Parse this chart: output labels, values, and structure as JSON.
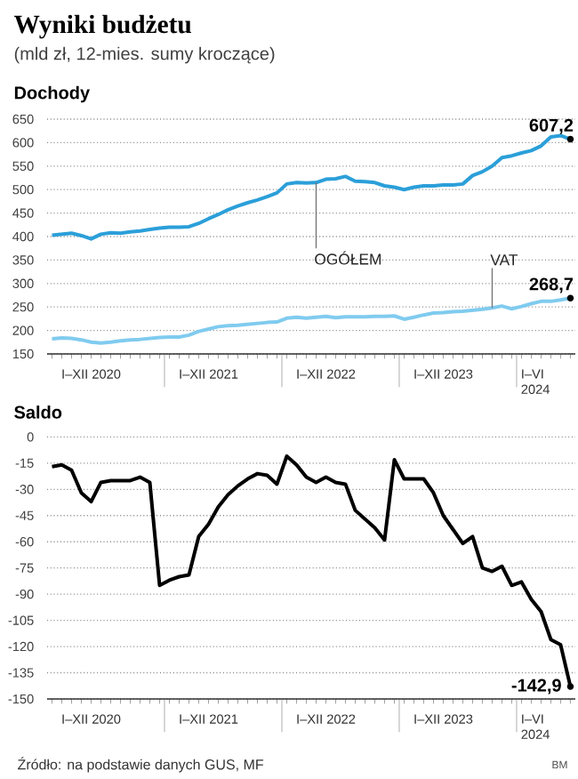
{
  "chart_data": [
    {
      "type": "line",
      "title": "Wyniki budżetu",
      "subtitle": "(mld zł, 12-mies. sumy kroczące)",
      "ylabel": "Dochody",
      "categories": [
        null,
        null,
        null,
        null,
        "I–XII 2020",
        null,
        null,
        null,
        null,
        null,
        null,
        null,
        null,
        null,
        null,
        null,
        "I–XII 2021",
        null,
        null,
        null,
        null,
        null,
        null,
        null,
        null,
        null,
        null,
        null,
        "I–XII 2022",
        null,
        null,
        null,
        null,
        null,
        null,
        null,
        null,
        null,
        null,
        null,
        "I–XII 2023",
        null,
        null,
        null,
        null,
        null,
        null,
        null,
        null,
        null,
        "I–VI 2024",
        null,
        null,
        null
      ],
      "ylim": [
        150,
        650
      ],
      "yticks": [
        150,
        200,
        250,
        300,
        350,
        400,
        450,
        500,
        550,
        600,
        650
      ],
      "grid": "y",
      "series": [
        {
          "name": "OGÓŁEM",
          "color": "#2b9fd9",
          "values": [
            403,
            405,
            407,
            402,
            395,
            405,
            408,
            407,
            410,
            412,
            415,
            418,
            420,
            420,
            421,
            428,
            438,
            447,
            457,
            465,
            472,
            478,
            485,
            493,
            512,
            515,
            514,
            515,
            522,
            523,
            528,
            518,
            517,
            515,
            508,
            505,
            500,
            505,
            508,
            508,
            510,
            510,
            512,
            530,
            538,
            550,
            568,
            572,
            578,
            583,
            593,
            612,
            615,
            607.2
          ],
          "value_labels": [
            null,
            null,
            null,
            null,
            null,
            null,
            null,
            null,
            null,
            null,
            null,
            null,
            null,
            null,
            null,
            null,
            null,
            null,
            null,
            null,
            null,
            null,
            null,
            null,
            null,
            null,
            null,
            null,
            null,
            null,
            null,
            null,
            null,
            null,
            null,
            null,
            null,
            null,
            null,
            null,
            null,
            null,
            null,
            null,
            null,
            null,
            null,
            null,
            null,
            null,
            null,
            null,
            null,
            "607,2"
          ]
        },
        {
          "name": "VAT",
          "color": "#80cbef",
          "values": [
            182,
            184,
            183,
            180,
            175,
            173,
            175,
            178,
            180,
            181,
            183,
            185,
            186,
            186,
            190,
            198,
            203,
            208,
            210,
            211,
            213,
            215,
            217,
            218,
            226,
            228,
            226,
            228,
            230,
            227,
            229,
            229,
            229,
            230,
            230,
            231,
            224,
            228,
            233,
            237,
            238,
            240,
            241,
            243,
            245,
            248,
            252,
            246,
            251,
            257,
            262,
            262,
            265,
            268.7
          ],
          "value_labels": [
            null,
            null,
            null,
            null,
            null,
            null,
            null,
            null,
            null,
            null,
            null,
            null,
            null,
            null,
            null,
            null,
            null,
            null,
            null,
            null,
            null,
            null,
            null,
            null,
            null,
            null,
            null,
            null,
            null,
            null,
            null,
            null,
            null,
            null,
            null,
            null,
            null,
            null,
            null,
            null,
            null,
            null,
            null,
            null,
            null,
            null,
            null,
            null,
            null,
            null,
            null,
            null,
            null,
            "268,7"
          ]
        }
      ]
    },
    {
      "type": "line",
      "ylabel": "Saldo",
      "categories": [
        null,
        null,
        null,
        null,
        "I–XII 2020",
        null,
        null,
        null,
        null,
        null,
        null,
        null,
        null,
        null,
        null,
        null,
        "I–XII 2021",
        null,
        null,
        null,
        null,
        null,
        null,
        null,
        null,
        null,
        null,
        null,
        "I–XII 2022",
        null,
        null,
        null,
        null,
        null,
        null,
        null,
        null,
        null,
        null,
        null,
        "I–XII 2023",
        null,
        null,
        null,
        null,
        null,
        null,
        null,
        null,
        null,
        "I–VI 2024",
        null,
        null,
        null
      ],
      "ylim": [
        -150,
        0
      ],
      "yticks": [
        -150,
        -135,
        -120,
        -105,
        -90,
        -75,
        -60,
        -45,
        -30,
        -15,
        0
      ],
      "grid": "y",
      "series": [
        {
          "color": "#000000",
          "values": [
            -17,
            -16,
            -19,
            -32,
            -37,
            -26,
            -25,
            -25,
            -25,
            -23,
            -26,
            -85,
            -82,
            -80,
            -79,
            -57,
            -50,
            -40,
            -33,
            -28,
            -24,
            -21,
            -22,
            -27,
            -11,
            -16,
            -23,
            -26,
            -23,
            -26,
            -27,
            -42,
            -47,
            -52,
            -59,
            -13,
            -24,
            -24,
            -24,
            -32,
            -45,
            -53,
            -61,
            -57,
            -75,
            -77,
            -74,
            -85,
            -83,
            -93,
            -100,
            -116,
            -119,
            -142.9
          ],
          "value_labels": [
            null,
            null,
            null,
            null,
            null,
            null,
            null,
            null,
            null,
            null,
            null,
            null,
            null,
            null,
            null,
            null,
            null,
            null,
            null,
            null,
            null,
            null,
            null,
            null,
            null,
            null,
            null,
            null,
            null,
            null,
            null,
            null,
            null,
            null,
            null,
            null,
            null,
            null,
            null,
            null,
            null,
            null,
            null,
            null,
            null,
            null,
            null,
            null,
            null,
            null,
            null,
            null,
            null,
            "-142,9"
          ]
        }
      ],
      "annotations": [
        "Źródło: na podstawie danych GUS, MF",
        "BM"
      ]
    }
  ]
}
